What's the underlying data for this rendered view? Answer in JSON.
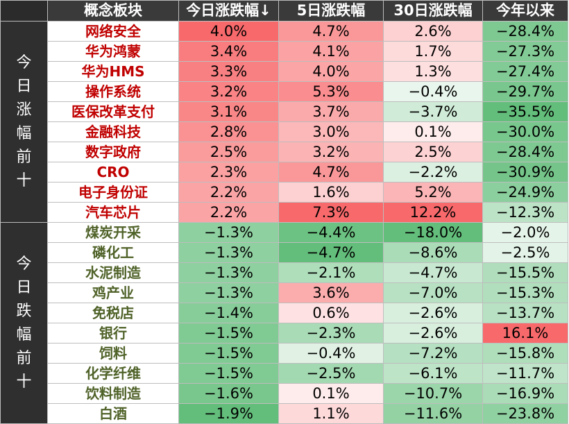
{
  "headers": [
    "概念板块",
    "今日涨跌幅↓",
    "5日涨跌幅",
    "30日涨跌幅",
    "今年以来"
  ],
  "groups": [
    {
      "label": "今日涨幅前十",
      "type": "up",
      "rows": [
        {
          "name": "网络安全",
          "d1": "4.0%",
          "d5": "4.7%",
          "d30": "2.6%",
          "ytd": "−28.4%",
          "v": [
            4.0,
            4.7,
            2.6,
            -28.4
          ]
        },
        {
          "name": "华为鸿蒙",
          "d1": "3.4%",
          "d5": "4.1%",
          "d30": "1.7%",
          "ytd": "−27.3%",
          "v": [
            3.4,
            4.1,
            1.7,
            -27.3
          ]
        },
        {
          "name": "华为HMS",
          "d1": "3.3%",
          "d5": "4.0%",
          "d30": "1.3%",
          "ytd": "−27.4%",
          "v": [
            3.3,
            4.0,
            1.3,
            -27.4
          ]
        },
        {
          "name": "操作系统",
          "d1": "3.2%",
          "d5": "5.3%",
          "d30": "−0.4%",
          "ytd": "−29.7%",
          "v": [
            3.2,
            5.3,
            -0.4,
            -29.7
          ]
        },
        {
          "name": "医保改革支付",
          "d1": "3.1%",
          "d5": "3.7%",
          "d30": "−3.7%",
          "ytd": "−35.5%",
          "v": [
            3.1,
            3.7,
            -3.7,
            -35.5
          ]
        },
        {
          "name": "金融科技",
          "d1": "2.8%",
          "d5": "3.0%",
          "d30": "0.1%",
          "ytd": "−30.0%",
          "v": [
            2.8,
            3.0,
            0.1,
            -30.0
          ]
        },
        {
          "name": "数字政府",
          "d1": "2.5%",
          "d5": "3.2%",
          "d30": "2.5%",
          "ytd": "−28.4%",
          "v": [
            2.5,
            3.2,
            2.5,
            -28.4
          ]
        },
        {
          "name": "CRO",
          "d1": "2.3%",
          "d5": "4.7%",
          "d30": "−2.2%",
          "ytd": "−30.9%",
          "v": [
            2.3,
            4.7,
            -2.2,
            -30.9
          ]
        },
        {
          "name": "电子身份证",
          "d1": "2.2%",
          "d5": "1.6%",
          "d30": "5.2%",
          "ytd": "−24.9%",
          "v": [
            2.2,
            1.6,
            5.2,
            -24.9
          ]
        },
        {
          "name": "汽车芯片",
          "d1": "2.2%",
          "d5": "7.3%",
          "d30": "12.2%",
          "ytd": "−12.3%",
          "v": [
            2.2,
            7.3,
            12.2,
            -12.3
          ]
        }
      ]
    },
    {
      "label": "今日跌幅前十",
      "type": "down",
      "rows": [
        {
          "name": "煤炭开采",
          "d1": "−1.3%",
          "d5": "−4.4%",
          "d30": "−18.0%",
          "ytd": "−2.0%",
          "v": [
            -1.3,
            -4.4,
            -18.0,
            -2.0
          ]
        },
        {
          "name": "磷化工",
          "d1": "−1.3%",
          "d5": "−4.7%",
          "d30": "−8.6%",
          "ytd": "−2.5%",
          "v": [
            -1.3,
            -4.7,
            -8.6,
            -2.5
          ]
        },
        {
          "name": "水泥制造",
          "d1": "−1.3%",
          "d5": "−2.1%",
          "d30": "−4.7%",
          "ytd": "−15.5%",
          "v": [
            -1.3,
            -2.1,
            -4.7,
            -15.5
          ]
        },
        {
          "name": "鸡产业",
          "d1": "−1.3%",
          "d5": "3.6%",
          "d30": "−7.0%",
          "ytd": "−15.3%",
          "v": [
            -1.3,
            3.6,
            -7.0,
            -15.3
          ]
        },
        {
          "name": "免税店",
          "d1": "−1.4%",
          "d5": "0.6%",
          "d30": "−2.6%",
          "ytd": "−13.7%",
          "v": [
            -1.4,
            0.6,
            -2.6,
            -13.7
          ]
        },
        {
          "name": "银行",
          "d1": "−1.5%",
          "d5": "−2.3%",
          "d30": "−2.6%",
          "ytd": "16.1%",
          "v": [
            -1.5,
            -2.3,
            -2.6,
            16.1
          ]
        },
        {
          "name": "饲料",
          "d1": "−1.5%",
          "d5": "−0.4%",
          "d30": "−7.2%",
          "ytd": "−15.8%",
          "v": [
            -1.5,
            -0.4,
            -7.2,
            -15.8
          ]
        },
        {
          "name": "化学纤维",
          "d1": "−1.5%",
          "d5": "−2.5%",
          "d30": "−6.1%",
          "ytd": "−11.7%",
          "v": [
            -1.5,
            -2.5,
            -6.1,
            -11.7
          ]
        },
        {
          "name": "饮料制造",
          "d1": "−1.6%",
          "d5": "0.1%",
          "d30": "−10.7%",
          "ytd": "−16.9%",
          "v": [
            -1.6,
            0.1,
            -10.7,
            -16.9
          ]
        },
        {
          "name": "白酒",
          "d1": "−1.9%",
          "d5": "1.1%",
          "d30": "−11.6%",
          "ytd": "−23.8%",
          "v": [
            -1.9,
            1.1,
            -11.6,
            -23.8
          ]
        }
      ]
    }
  ],
  "colors": {
    "header_bg": "#3a3a3a",
    "group_bg": "#2f2f2f",
    "up_text": "#c00000",
    "down_text": "#4f6228",
    "positive_max": "#f8696b",
    "negative_max": "#63be7b"
  }
}
